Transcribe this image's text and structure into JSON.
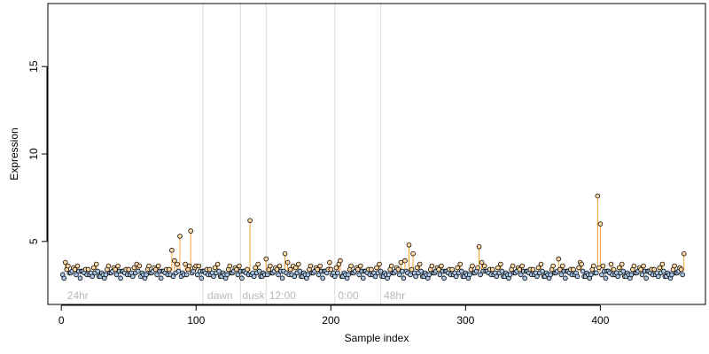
{
  "chart_data": {
    "type": "scatter",
    "xlabel": "Sample index",
    "ylabel": "Expression",
    "xlim": [
      -10,
      478
    ],
    "ylim": [
      1.4,
      18.6
    ],
    "x_ticks": [
      0,
      100,
      200,
      300,
      400
    ],
    "y_ticks": [
      5,
      10,
      15
    ],
    "grid": false,
    "baseline": 3.3,
    "colors": {
      "point_edge": "#000000",
      "low_fill": "#a9c6e6",
      "high_fill": "#ffd9a6",
      "highlight_stem": "#f0a030",
      "baseline_stem": "#9bb8d8",
      "vertical_guides": "#dcdcdc",
      "annotation_text": "#b8b8b8"
    },
    "vertical_guides": [
      105,
      133,
      152,
      203,
      237
    ],
    "annotations": [
      {
        "label": "24hr",
        "x": 3
      },
      {
        "label": "dawn",
        "x": 107
      },
      {
        "label": "dusk",
        "x": 133
      },
      {
        "label": "12:00",
        "x": 153
      },
      {
        "label": "0:00",
        "x": 204
      },
      {
        "label": "48hr",
        "x": 238
      }
    ],
    "n_points": 462,
    "base_values": [
      3.2,
      3.3,
      3.7,
      3.5,
      3.2,
      3.6,
      3.4,
      3.1,
      2.9,
      3.3,
      3.4,
      3.0,
      3.2,
      3.1,
      2.9,
      3.3,
      3.0,
      3.1,
      3.5,
      3.2,
      3.4,
      3.1,
      3.3,
      3.0,
      3.6,
      3.2,
      3.3,
      3.1,
      3.4,
      3.2
    ],
    "peaks": [
      {
        "x": 3,
        "y": 3.8
      },
      {
        "x": 58,
        "y": 3.6
      },
      {
        "x": 82,
        "y": 4.5
      },
      {
        "x": 84,
        "y": 3.9
      },
      {
        "x": 88,
        "y": 5.3
      },
      {
        "x": 92,
        "y": 3.7
      },
      {
        "x": 96,
        "y": 5.6
      },
      {
        "x": 100,
        "y": 3.6
      },
      {
        "x": 140,
        "y": 6.2
      },
      {
        "x": 152,
        "y": 4.0
      },
      {
        "x": 166,
        "y": 4.3
      },
      {
        "x": 168,
        "y": 3.8
      },
      {
        "x": 172,
        "y": 3.6
      },
      {
        "x": 199,
        "y": 3.8
      },
      {
        "x": 207,
        "y": 3.9
      },
      {
        "x": 252,
        "y": 3.8
      },
      {
        "x": 255,
        "y": 3.9
      },
      {
        "x": 258,
        "y": 4.8
      },
      {
        "x": 261,
        "y": 4.3
      },
      {
        "x": 310,
        "y": 4.7
      },
      {
        "x": 312,
        "y": 3.8
      },
      {
        "x": 314,
        "y": 3.6
      },
      {
        "x": 369,
        "y": 4.0
      },
      {
        "x": 385,
        "y": 3.8
      },
      {
        "x": 398,
        "y": 7.6
      },
      {
        "x": 400,
        "y": 6.0
      },
      {
        "x": 408,
        "y": 3.7
      },
      {
        "x": 462,
        "y": 4.3
      }
    ]
  }
}
